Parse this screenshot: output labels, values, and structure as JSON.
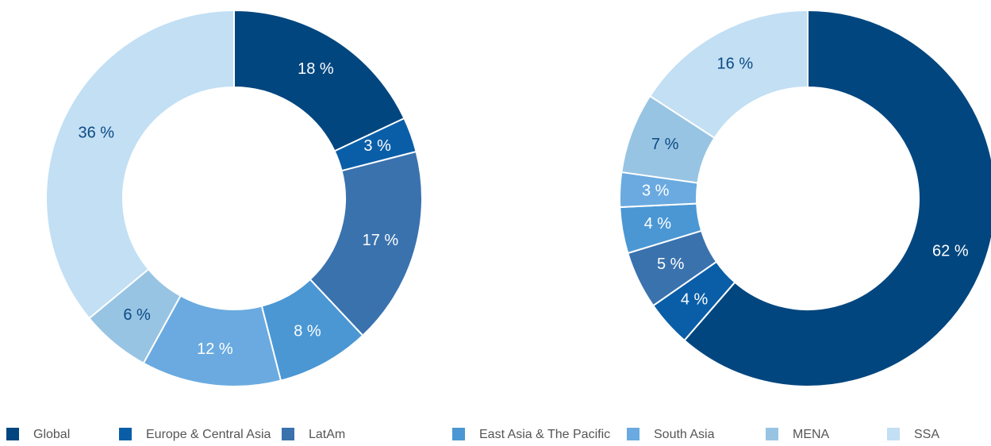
{
  "chart_data": [
    {
      "type": "pie",
      "values": [
        18,
        3,
        17,
        8,
        12,
        6,
        36
      ],
      "value_labels": [
        "18 %",
        "3 %",
        "17 %",
        "8 %",
        "12 %",
        "6 %",
        "36 %"
      ]
    },
    {
      "type": "pie",
      "values": [
        62,
        4,
        5,
        4,
        3,
        7,
        16
      ],
      "value_labels": [
        "62 %",
        "4 %",
        "5 %",
        "4 %",
        "3 %",
        "7 %",
        "16 %"
      ]
    }
  ],
  "legend": {
    "names": [
      "Global",
      "Europe & Central Asia",
      "LatAm",
      "East Asia & The Pacific",
      "South Asia",
      "MENA",
      "SSA"
    ],
    "colors": [
      "#01467f",
      "#0a5ea8",
      "#3a72ae",
      "#4a97d4",
      "#6aaae0",
      "#98c4e3",
      "#c2dff4"
    ]
  }
}
